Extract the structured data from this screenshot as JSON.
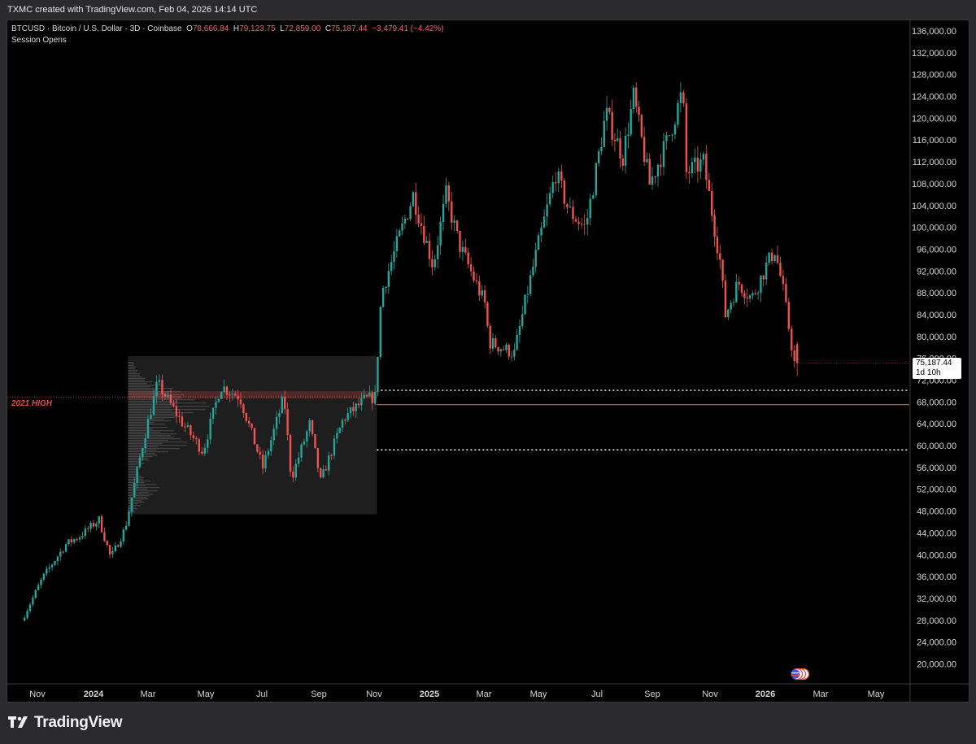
{
  "header": {
    "text": "TXMC created with TradingView.com, Feb 04, 2026 14:14 UTC"
  },
  "legend": {
    "symbol": "BTCUSD · Bitcoin / U.S. Dollar · 3D · Coinbase",
    "o_label": "O",
    "o_value": "78,666.84",
    "h_label": "H",
    "h_value": "79,123.75",
    "l_label": "L",
    "l_value": "72,859.00",
    "c_label": "C",
    "c_value": "75,187.44",
    "change": "−3,479.41 (−4.42%)",
    "indicator": "Session Opens"
  },
  "annotations": {
    "level_label": "2021 HIGH"
  },
  "price_label": {
    "price": "75,187.44",
    "countdown": "1d 10h"
  },
  "branding": {
    "name": "TradingView"
  },
  "colors": {
    "up": "#26a69a",
    "down": "#ef5350",
    "level": "#e24a46",
    "background": "#000000",
    "profile_box": "#1e1e1e"
  },
  "chart_data": {
    "type": "candlestick",
    "timeframe": "3D",
    "x_ticks": [
      "Nov",
      "2024",
      "Mar",
      "May",
      "Jul",
      "Sep",
      "Nov",
      "2025",
      "Mar",
      "May",
      "Jul",
      "Sep",
      "Nov",
      "2026",
      "Mar",
      "May"
    ],
    "y_ticks": [
      "20,000.00",
      "24,000.00",
      "28,000.00",
      "32,000.00",
      "36,000.00",
      "40,000.00",
      "44,000.00",
      "48,000.00",
      "52,000.00",
      "56,000.00",
      "60,000.00",
      "64,000.00",
      "68,000.00",
      "72,000.00",
      "76,000.00",
      "80,000.00",
      "84,000.00",
      "88,000.00",
      "92,000.00",
      "96,000.00",
      "100,000.00",
      "104,000.00",
      "108,000.00",
      "112,000.00",
      "116,000.00",
      "120,000.00",
      "124,000.00",
      "128,000.00",
      "132,000.00",
      "136,000.00"
    ],
    "ylim": [
      18000,
      138000
    ],
    "horizontal_levels": [
      {
        "price": 69000,
        "style": "solid",
        "label": "2021 HIGH"
      },
      {
        "price": 70200,
        "style": "dotted"
      },
      {
        "price": 59300,
        "style": "dotted"
      }
    ],
    "volume_profile_range": {
      "from": "2024-02",
      "to": "2024-11",
      "low": 47500,
      "high": 76500
    },
    "price_path": [
      {
        "date": "2023-10-18",
        "price": 28000
      },
      {
        "date": "2023-11-10",
        "price": 36000
      },
      {
        "date": "2023-12-05",
        "price": 42000
      },
      {
        "date": "2023-12-20",
        "price": 43500
      },
      {
        "date": "2024-01-10",
        "price": 46500
      },
      {
        "date": "2024-01-23",
        "price": 39500
      },
      {
        "date": "2024-02-08",
        "price": 45000
      },
      {
        "date": "2024-02-28",
        "price": 61000
      },
      {
        "date": "2024-03-14",
        "price": 71500
      },
      {
        "date": "2024-04-10",
        "price": 64000
      },
      {
        "date": "2024-05-01",
        "price": 59000
      },
      {
        "date": "2024-05-20",
        "price": 71000
      },
      {
        "date": "2024-06-10",
        "price": 69000
      },
      {
        "date": "2024-07-05",
        "price": 56000
      },
      {
        "date": "2024-07-28",
        "price": 69000
      },
      {
        "date": "2024-08-05",
        "price": 54000
      },
      {
        "date": "2024-08-25",
        "price": 64000
      },
      {
        "date": "2024-09-06",
        "price": 53500
      },
      {
        "date": "2024-10-01",
        "price": 65000
      },
      {
        "date": "2024-10-25",
        "price": 68500
      },
      {
        "date": "2024-11-05",
        "price": 69000
      },
      {
        "date": "2024-11-12",
        "price": 88000
      },
      {
        "date": "2024-12-05",
        "price": 100000
      },
      {
        "date": "2024-12-17",
        "price": 106000
      },
      {
        "date": "2025-01-08",
        "price": 93000
      },
      {
        "date": "2025-01-22",
        "price": 106000
      },
      {
        "date": "2025-02-05",
        "price": 97000
      },
      {
        "date": "2025-03-05",
        "price": 86000
      },
      {
        "date": "2025-03-10",
        "price": 79000
      },
      {
        "date": "2025-04-07",
        "price": 77000
      },
      {
        "date": "2025-04-20",
        "price": 87000
      },
      {
        "date": "2025-05-22",
        "price": 110000
      },
      {
        "date": "2025-06-05",
        "price": 103000
      },
      {
        "date": "2025-06-22",
        "price": 100000
      },
      {
        "date": "2025-07-14",
        "price": 121000
      },
      {
        "date": "2025-08-02",
        "price": 113000
      },
      {
        "date": "2025-08-14",
        "price": 124000
      },
      {
        "date": "2025-09-01",
        "price": 108000
      },
      {
        "date": "2025-09-20",
        "price": 116000
      },
      {
        "date": "2025-10-06",
        "price": 125000
      },
      {
        "date": "2025-10-10",
        "price": 110000
      },
      {
        "date": "2025-10-28",
        "price": 112000
      },
      {
        "date": "2025-11-15",
        "price": 94000
      },
      {
        "date": "2025-11-21",
        "price": 84000
      },
      {
        "date": "2025-12-05",
        "price": 90000
      },
      {
        "date": "2025-12-20",
        "price": 87000
      },
      {
        "date": "2026-01-05",
        "price": 93000
      },
      {
        "date": "2026-01-14",
        "price": 96000
      },
      {
        "date": "2026-01-22",
        "price": 89500
      },
      {
        "date": "2026-02-04",
        "price": 75187.44
      }
    ],
    "last_candle": {
      "open": 78666.84,
      "high": 79123.75,
      "low": 72859.0,
      "close": 75187.44
    }
  }
}
